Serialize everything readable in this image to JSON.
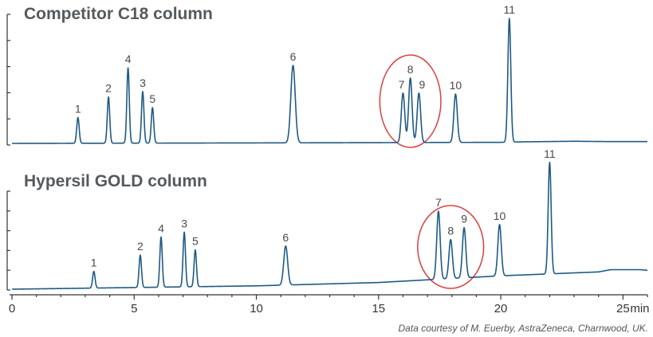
{
  "chart_data": {
    "type": "line",
    "x_unit": "min",
    "x_ticks": [
      0,
      5,
      10,
      15,
      20,
      25
    ],
    "xlim": [
      0,
      26
    ],
    "colors": {
      "trace": "#1f5a85",
      "highlight_circle": "#d9403e",
      "axis": "#333333"
    },
    "credit": "Data courtesy of M. Euerby, AstraZeneca, Charnwood, UK.",
    "panels": [
      {
        "title": "Competitor C18 column",
        "baseline": {
          "points": [
            [
              0,
              0.0
            ],
            [
              11,
              0.05
            ],
            [
              20,
              0.1
            ],
            [
              21,
              0.15
            ],
            [
              23,
              0.2
            ],
            [
              24.5,
              0.17
            ],
            [
              26,
              0.17
            ]
          ]
        },
        "peaks": [
          {
            "label": "1",
            "rt": 2.7,
            "height": 2.4,
            "width": 0.05
          },
          {
            "label": "2",
            "rt": 3.95,
            "height": 4.3,
            "width": 0.05
          },
          {
            "label": "3",
            "rt": 5.35,
            "height": 4.8,
            "width": 0.05
          },
          {
            "label": "4",
            "rt": 4.75,
            "height": 7.0,
            "width": 0.05
          },
          {
            "label": "5",
            "rt": 5.75,
            "height": 3.3,
            "width": 0.05
          },
          {
            "label": "6",
            "rt": 11.5,
            "height": 7.2,
            "width": 0.09
          },
          {
            "label": "7",
            "rt": 16.0,
            "height": 4.6,
            "width": 0.07
          },
          {
            "label": "8",
            "rt": 16.3,
            "height": 6.0,
            "width": 0.07
          },
          {
            "label": "9",
            "rt": 16.65,
            "height": 4.6,
            "width": 0.07
          },
          {
            "label": "10",
            "rt": 18.15,
            "height": 4.5,
            "width": 0.07
          },
          {
            "label": "11",
            "rt": 20.35,
            "height": 11.5,
            "width": 0.06
          }
        ],
        "highlight": {
          "x_center": 16.3,
          "x_half_width": 1.25,
          "label": ""
        }
      },
      {
        "title": "Hypersil GOLD column",
        "baseline": {
          "points": [
            [
              0,
              0.0
            ],
            [
              10,
              0.3
            ],
            [
              15,
              0.6
            ],
            [
              20,
              1.2
            ],
            [
              24,
              1.55
            ],
            [
              24.5,
              1.75
            ],
            [
              25.7,
              1.75
            ],
            [
              26,
              1.7
            ]
          ]
        },
        "peaks": [
          {
            "label": "1",
            "rt": 3.35,
            "height": 1.5,
            "width": 0.05
          },
          {
            "label": "2",
            "rt": 5.25,
            "height": 2.9,
            "width": 0.05
          },
          {
            "label": "3",
            "rt": 7.05,
            "height": 4.9,
            "width": 0.05
          },
          {
            "label": "4",
            "rt": 6.1,
            "height": 4.5,
            "width": 0.05
          },
          {
            "label": "5",
            "rt": 7.5,
            "height": 3.3,
            "width": 0.05
          },
          {
            "label": "6",
            "rt": 11.2,
            "height": 3.5,
            "width": 0.08
          },
          {
            "label": "7",
            "rt": 17.45,
            "height": 6.1,
            "width": 0.07
          },
          {
            "label": "8",
            "rt": 17.95,
            "height": 3.5,
            "width": 0.07
          },
          {
            "label": "9",
            "rt": 18.5,
            "height": 4.5,
            "width": 0.07
          },
          {
            "label": "10",
            "rt": 19.95,
            "height": 4.6,
            "width": 0.07
          },
          {
            "label": "11",
            "rt": 22.0,
            "height": 10.0,
            "width": 0.06
          }
        ],
        "highlight": {
          "x_center": 17.95,
          "x_half_width": 1.35,
          "label": ""
        }
      }
    ]
  }
}
